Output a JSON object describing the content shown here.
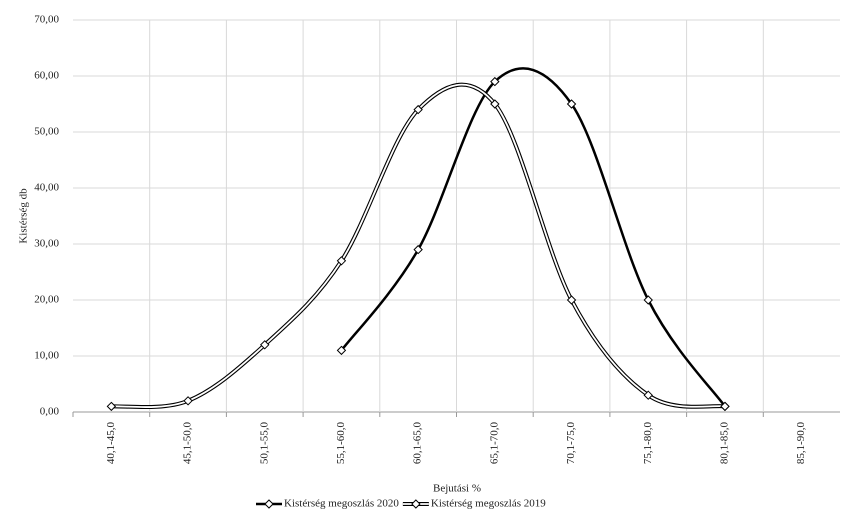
{
  "chart_data": {
    "type": "line",
    "x_label": "Bejutási %",
    "y_label": "Kistérség db",
    "categories": [
      "40,1-45,0",
      "45,1-50,0",
      "50,1-55,0",
      "55,1-60,0",
      "60,1-65,0",
      "65,1-70,0",
      "70,1-75,0",
      "75,1-80,0",
      "80,1-85,0",
      "85,1-90,0"
    ],
    "series": [
      {
        "name": "Kistérség megoszlás 2020",
        "color": "#000000",
        "style": "solid",
        "values": [
          null,
          null,
          null,
          11,
          29,
          59,
          55,
          20,
          1,
          null
        ]
      },
      {
        "name": "Kistérség megoszlás 2019",
        "color": "#000000",
        "style": "double",
        "values": [
          1,
          2,
          12,
          27,
          54,
          55,
          20,
          3,
          1,
          null
        ]
      }
    ],
    "ylim": [
      0,
      70
    ],
    "yticks": [
      {
        "value": 0,
        "label": "0,00"
      },
      {
        "value": 10,
        "label": "10,00"
      },
      {
        "value": 20,
        "label": "20,00"
      },
      {
        "value": 30,
        "label": "30,00"
      },
      {
        "value": 40,
        "label": "40,00"
      },
      {
        "value": 50,
        "label": "50,00"
      },
      {
        "value": 60,
        "label": "60,00"
      },
      {
        "value": 70,
        "label": "70,00"
      }
    ],
    "grid": true,
    "smooth": true,
    "legend": "bottom"
  }
}
